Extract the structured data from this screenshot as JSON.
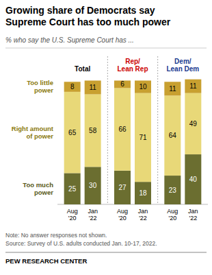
{
  "chart_data": {
    "type": "bar",
    "stacked": true,
    "data_labels": true,
    "grid": false,
    "tick_labels": "x",
    "title": "Growing share of Democrats say\nSupreme Court has too much power",
    "subtitle": "% who say the U.S. Supreme Court has ...",
    "categories": [
      "Aug\n'20",
      "Jan\n'22",
      "Aug\n'20",
      "Jan\n'22",
      "Aug\n'20",
      "Jan\n'22"
    ],
    "groups": [
      {
        "label": "Total",
        "color": "#000000"
      },
      {
        "label": "Rep/\nLean Rep",
        "color": "#cc0000"
      },
      {
        "label": "Dem/\nLean Dem",
        "color": "#1a3a8f"
      }
    ],
    "series": [
      {
        "name": "Too much\npower",
        "color": "#6b6e30",
        "name_color": "#5a5a1a",
        "values": [
          25,
          30,
          27,
          18,
          23,
          40
        ]
      },
      {
        "name": "Right amount\nof power",
        "color": "#e8d878",
        "name_color": "#8b7a10",
        "values": [
          65,
          58,
          66,
          71,
          64,
          49
        ]
      },
      {
        "name": "Too little\npower",
        "color": "#c8a030",
        "name_color": "#8b7a10",
        "values": [
          8,
          11,
          6,
          10,
          11,
          11
        ]
      }
    ],
    "ylim": [
      0,
      102
    ],
    "note": "Note: No answer responses not shown.",
    "source": "Source: Survey of U.S. adults conducted Jan. 10-17, 2022.",
    "footer": "PEW RESEARCH CENTER"
  }
}
